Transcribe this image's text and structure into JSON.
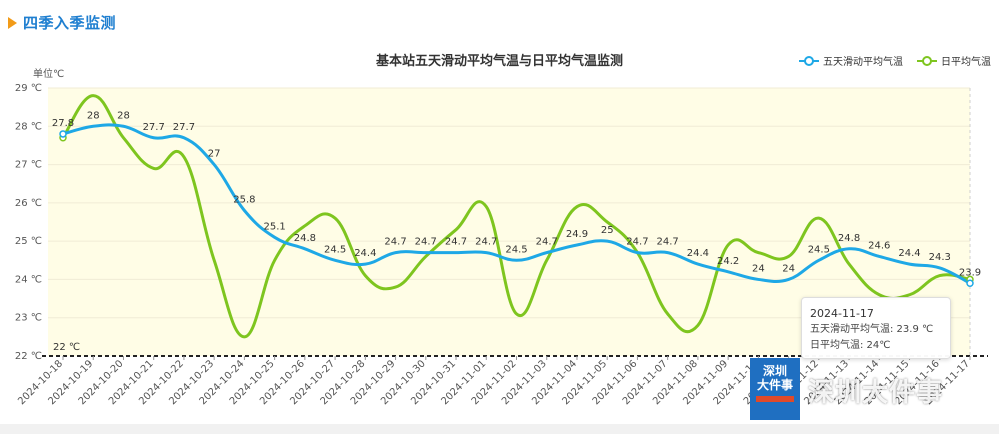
{
  "header": {
    "title": "四季入季监测",
    "icon": "play-triangle-icon"
  },
  "chart_data": {
    "type": "line",
    "title": "基本站五天滑动平均气温与日平均气温监测",
    "ylabel": "单位℃",
    "ylim": [
      22,
      29
    ],
    "yticks": [
      "22 ℃",
      "23 ℃",
      "24 ℃",
      "25 ℃",
      "26 ℃",
      "27 ℃",
      "28 ℃",
      "29 ℃"
    ],
    "threshold": {
      "value": 22,
      "label": "22 ℃"
    },
    "categories": [
      "2024-10-18",
      "2024-10-19",
      "2024-10-20",
      "2024-10-21",
      "2024-10-22",
      "2024-10-23",
      "2024-10-24",
      "2024-10-25",
      "2024-10-26",
      "2024-10-27",
      "2024-10-28",
      "2024-10-29",
      "2024-10-30",
      "2024-10-31",
      "2024-11-01",
      "2024-11-02",
      "2024-11-03",
      "2024-11-04",
      "2024-11-05",
      "2024-11-06",
      "2024-11-07",
      "2024-11-08",
      "2024-11-09",
      "2024-11-10",
      "2024-11-11",
      "2024-11-12",
      "2024-11-13",
      "2024-11-14",
      "2024-11-15",
      "2024-11-16",
      "2024-11-17"
    ],
    "series": [
      {
        "name": "五天滑动平均气温",
        "color": "#1ea8e6",
        "labels": true,
        "values": [
          27.8,
          28,
          28,
          27.7,
          27.7,
          27,
          25.8,
          25.1,
          24.8,
          24.5,
          24.4,
          24.7,
          24.7,
          24.7,
          24.7,
          24.5,
          24.7,
          24.9,
          25,
          24.7,
          24.7,
          24.4,
          24.2,
          24,
          24,
          24.5,
          24.8,
          24.6,
          24.4,
          24.3,
          23.9
        ]
      },
      {
        "name": "日平均气温",
        "color": "#7ec51f",
        "labels": false,
        "values": [
          27.7,
          28.8,
          27.7,
          26.9,
          27.2,
          24.5,
          22.5,
          24.5,
          25.4,
          25.6,
          24.1,
          23.8,
          24.6,
          25.3,
          25.9,
          23.1,
          24.5,
          25.9,
          25.5,
          24.7,
          23.1,
          22.8,
          24.9,
          24.7,
          24.6,
          25.6,
          24.4,
          23.6,
          23.6,
          24.1,
          24.0
        ]
      }
    ],
    "grid": true,
    "legend_position": "top-right"
  },
  "tooltip": {
    "date": "2024-11-17",
    "line1": "五天滑动平均气温: 23.9 ℃",
    "line2": "日平均气温: 24℃"
  },
  "logo": {
    "line1": "深圳",
    "line2": "大件事"
  },
  "watermark": "深圳大件事"
}
